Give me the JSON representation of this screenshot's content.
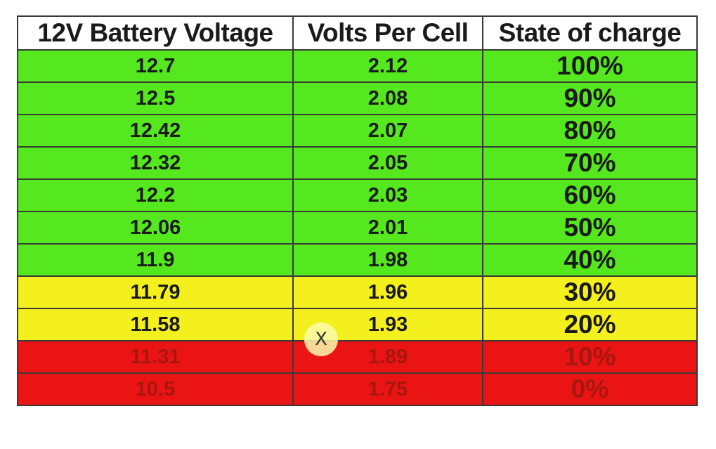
{
  "table": {
    "headers": [
      "12V Battery Voltage",
      "Volts Per Cell",
      "State of charge"
    ],
    "rows": [
      {
        "voltage": "12.7",
        "per_cell": "2.12",
        "soc": "100%",
        "color": "#55e81f"
      },
      {
        "voltage": "12.5",
        "per_cell": "2.08",
        "soc": "90%",
        "color": "#55e81f"
      },
      {
        "voltage": "12.42",
        "per_cell": "2.07",
        "soc": "80%",
        "color": "#55e81f"
      },
      {
        "voltage": "12.32",
        "per_cell": "2.05",
        "soc": "70%",
        "color": "#55e81f"
      },
      {
        "voltage": "12.2",
        "per_cell": "2.03",
        "soc": "60%",
        "color": "#55e81f"
      },
      {
        "voltage": "12.06",
        "per_cell": "2.01",
        "soc": "50%",
        "color": "#55e81f"
      },
      {
        "voltage": "11.9",
        "per_cell": "1.98",
        "soc": "40%",
        "color": "#55e81f"
      },
      {
        "voltage": "11.79",
        "per_cell": "1.96",
        "soc": "30%",
        "color": "#f4f01e"
      },
      {
        "voltage": "11.58",
        "per_cell": "1.93",
        "soc": "20%",
        "color": "#f4f01e"
      },
      {
        "voltage": "11.31",
        "per_cell": "1.89",
        "soc": "10%",
        "color": "#ea1414"
      },
      {
        "voltage": "10.5",
        "per_cell": "1.75",
        "soc": "0%",
        "color": "#ea1414"
      }
    ]
  },
  "overlay": {
    "close_label": "X",
    "icon": "close-icon"
  }
}
